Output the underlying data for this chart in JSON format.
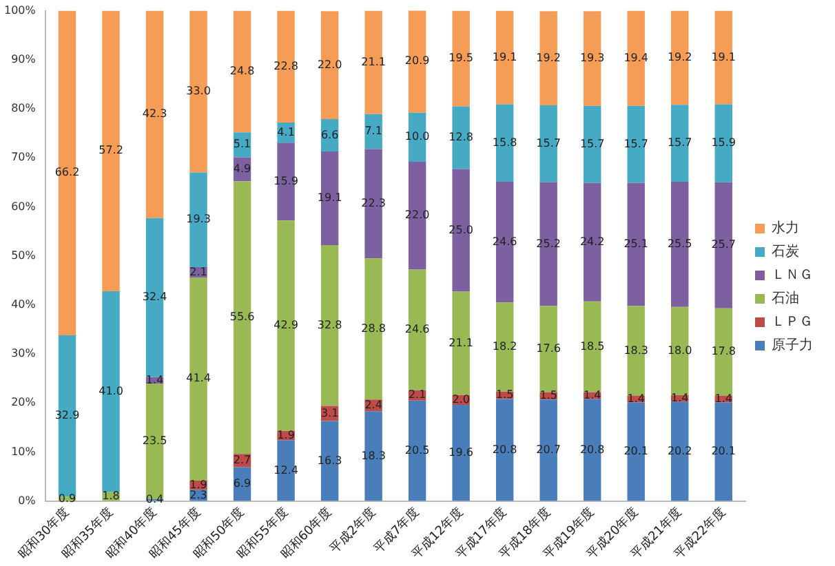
{
  "chart_data": {
    "type": "bar",
    "stacked": true,
    "categories": [
      "昭和30年度",
      "昭和35年度",
      "昭和40年度",
      "昭和45年度",
      "昭和50年度",
      "昭和55年度",
      "昭和60年度",
      "平成2年度",
      "平成7年度",
      "平成12年度",
      "平成17年度",
      "平成18年度",
      "平成19年度",
      "平成20年度",
      "平成21年度",
      "平成22年度"
    ],
    "series": [
      {
        "name": "原子力",
        "color": "#4a7ebb",
        "values": [
          null,
          null,
          0.4,
          2.3,
          6.9,
          12.4,
          16.3,
          18.3,
          20.5,
          19.6,
          20.8,
          20.7,
          20.8,
          20.1,
          20.2,
          20.1
        ],
        "value_labels": [
          null,
          null,
          "0.4",
          "2.3",
          "6.9",
          "12.4",
          "16.3",
          "18.3",
          "20.5",
          "19.6",
          "20.8",
          "20.7",
          "20.8",
          "20.1",
          "20.2",
          "20.1"
        ]
      },
      {
        "name": "ＬＰＧ",
        "color": "#be4b48",
        "values": [
          null,
          null,
          null,
          1.9,
          2.7,
          1.9,
          3.1,
          2.4,
          2.1,
          2.0,
          1.5,
          1.5,
          1.4,
          1.4,
          1.4,
          1.4
        ],
        "value_labels": [
          null,
          null,
          null,
          "1.9",
          "2.7",
          "1.9",
          "3.1",
          "2.4",
          "2.1",
          "2.0",
          "1.5",
          "1.5",
          "1.4",
          "1.4",
          "1.4",
          "1.4"
        ]
      },
      {
        "name": "石油",
        "color": "#98b954",
        "values": [
          0.9,
          1.8,
          23.5,
          41.4,
          55.6,
          42.9,
          32.8,
          28.8,
          24.6,
          21.1,
          18.2,
          17.6,
          18.5,
          18.3,
          18.0,
          17.8
        ],
        "value_labels": [
          "0.9",
          "1.8",
          "23.5",
          "41.4",
          "55.6",
          "42.9",
          "32.8",
          "28.8",
          "24.6",
          "21.1",
          "18.2",
          "17.6",
          "18.5",
          "18.3",
          "18.0",
          "17.8"
        ]
      },
      {
        "name": "ＬＮＧ",
        "color": "#7d60a0",
        "values": [
          null,
          null,
          1.4,
          2.1,
          4.9,
          15.9,
          19.1,
          22.3,
          22.0,
          25.0,
          24.6,
          25.2,
          24.2,
          25.1,
          25.5,
          25.7
        ],
        "value_labels": [
          null,
          null,
          "1.4",
          "2.1",
          "4.9",
          "15.9",
          "19.1",
          "22.3",
          "22.0",
          "25.0",
          "24.6",
          "25.2",
          "24.2",
          "25.1",
          "25.5",
          "25.7"
        ]
      },
      {
        "name": "石炭",
        "color": "#46aac5",
        "values": [
          32.9,
          41.0,
          32.4,
          19.3,
          5.1,
          4.1,
          6.6,
          7.1,
          10.0,
          12.8,
          15.8,
          15.7,
          15.7,
          15.7,
          15.7,
          15.9
        ],
        "value_labels": [
          "32.9",
          "41.0",
          "32.4",
          "19.3",
          "5.1",
          "4.1",
          "6.6",
          "7.1",
          "10.0",
          "12.8",
          "15.8",
          "15.7",
          "15.7",
          "15.7",
          "15.7",
          "15.9"
        ]
      },
      {
        "name": "水力",
        "color": "#f59d56",
        "values": [
          66.2,
          57.2,
          42.3,
          33.0,
          24.8,
          22.8,
          22.0,
          21.1,
          20.9,
          19.5,
          19.1,
          19.2,
          19.3,
          19.4,
          19.2,
          19.1
        ],
        "value_labels": [
          "66.2",
          "57.2",
          "42.3",
          "33.0",
          "24.8",
          "22.8",
          "22.0",
          "21.1",
          "20.9",
          "19.5",
          "19.1",
          "19.2",
          "19.3",
          "19.4",
          "19.2",
          "19.1"
        ]
      }
    ],
    "ylim": [
      0,
      100
    ],
    "yticks": [
      {
        "value": 0,
        "label": "0%"
      },
      {
        "value": 10,
        "label": "10%"
      },
      {
        "value": 20,
        "label": "20%"
      },
      {
        "value": 30,
        "label": "30%"
      },
      {
        "value": 40,
        "label": "40%"
      },
      {
        "value": 50,
        "label": "50%"
      },
      {
        "value": 60,
        "label": "60%"
      },
      {
        "value": 70,
        "label": "70%"
      },
      {
        "value": 80,
        "label": "80%"
      },
      {
        "value": 90,
        "label": "90%"
      },
      {
        "value": 100,
        "label": "100%"
      }
    ],
    "grid": false,
    "legend": "right"
  }
}
